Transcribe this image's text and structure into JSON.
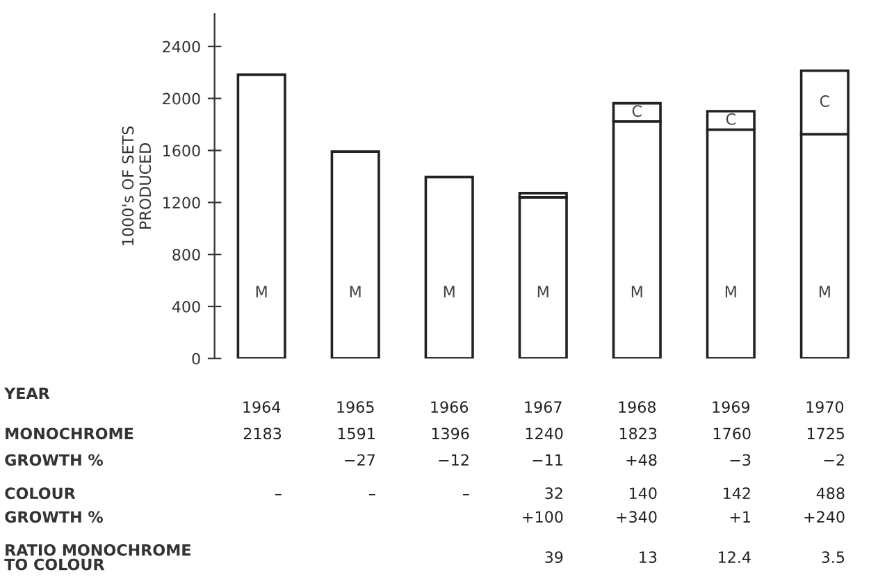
{
  "chart_data": {
    "type": "bar",
    "stacked": true,
    "ylabel": "1000's OF SETS\nPRODUCED",
    "categories": [
      "1964",
      "1965",
      "1966",
      "1967",
      "1968",
      "1969",
      "1970"
    ],
    "series": [
      {
        "name": "M",
        "color": "#ffffff",
        "values": [
          2183,
          1591,
          1396,
          1240,
          1823,
          1760,
          1725
        ],
        "value_labels": [
          "2183",
          "1591",
          "1396",
          "1240",
          "1823",
          "1760",
          "1725"
        ]
      },
      {
        "name": "C",
        "color": "#ffffff",
        "values": [
          null,
          null,
          null,
          32,
          140,
          142,
          488
        ],
        "value_labels": [
          "–",
          "–",
          "–",
          "32",
          "140",
          "142",
          "488"
        ]
      }
    ],
    "ylim": [
      0,
      2650
    ],
    "yticks": [
      0,
      400,
      800,
      1200,
      1600,
      2000,
      2400
    ],
    "grid": false,
    "legend": false,
    "annotations": [
      "YEAR",
      "MONOCHROME",
      "GROWTH %",
      "−27",
      "−12",
      "−11",
      "+48",
      "−3",
      "−2",
      "COLOUR",
      "GROWTH %",
      "+100",
      "+340",
      "+1",
      "+240",
      "RATIO MONOCHROME\nTO COLOUR",
      "39",
      "13",
      "12.4",
      "3.5"
    ]
  }
}
